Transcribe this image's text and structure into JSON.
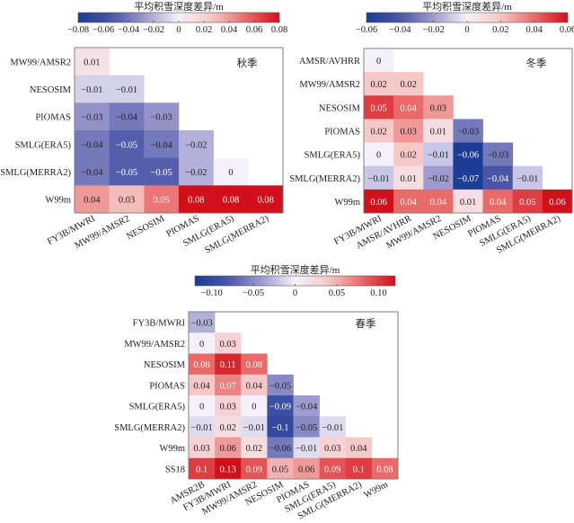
{
  "colormap": {
    "name": "blue-white-red",
    "stops": [
      "#1c3c96",
      "#4a55a8",
      "#9d9ccf",
      "#f5f1fa",
      "#f6c8c8",
      "#ea6a6a",
      "#d1101b"
    ]
  },
  "chart_data": [
    {
      "type": "heatmap",
      "title": "秋季",
      "colorbar_label": "平均积雪深度差异/m",
      "colorbar_range": [
        -0.08,
        0.08
      ],
      "colorbar_ticks": [
        "−0.08",
        "−0.06",
        "−0.04",
        "−0.02",
        "0",
        "0.02",
        "0.04",
        "0.06",
        "0.08"
      ],
      "colorbar_tick_values": [
        -0.08,
        -0.06,
        -0.04,
        -0.02,
        0,
        0.02,
        0.04,
        0.06,
        0.08
      ],
      "x_labels": [
        "FY3B/MWRI",
        "MW99/AMSR2",
        "NESOSIM",
        "PIOMAS",
        "SMLG(ERA5)",
        "SMLG(MERRA2)"
      ],
      "y_labels": [
        "MW99/AMSR2",
        "NESOSIM",
        "PIOMAS",
        "SMLG(ERA5)",
        "SMLG(MERRA2)",
        "W99m"
      ],
      "matrix": [
        [
          0.01,
          null,
          null,
          null,
          null,
          null
        ],
        [
          -0.01,
          -0.01,
          null,
          null,
          null,
          null
        ],
        [
          -0.03,
          -0.04,
          -0.03,
          null,
          null,
          null
        ],
        [
          -0.04,
          -0.05,
          -0.04,
          -0.02,
          null,
          null
        ],
        [
          -0.04,
          -0.05,
          -0.05,
          -0.02,
          0,
          null
        ],
        [
          0.04,
          0.03,
          0.05,
          0.08,
          0.08,
          0.08
        ]
      ]
    },
    {
      "type": "heatmap",
      "title": "冬季",
      "colorbar_label": "平均积雪深度差异/m",
      "colorbar_range": [
        -0.06,
        0.06
      ],
      "colorbar_ticks": [
        "−0.06",
        "−0.04",
        "−0.02",
        "0",
        "0.02",
        "0.04",
        "0.06"
      ],
      "colorbar_tick_values": [
        -0.06,
        -0.04,
        -0.02,
        0,
        0.02,
        0.04,
        0.06
      ],
      "x_labels": [
        "FY3B/MWRI",
        "AMSR/AVHRR",
        "MW99/AMSR2",
        "NESOSIM",
        "PIOMAS",
        "SMLG(ERA5)",
        "SMLG(MERRA2)"
      ],
      "y_labels": [
        "AMSR/AVHRR",
        "MW99/AMSR2",
        "NESOSIM",
        "PIOMAS",
        "SMLG(ERA5)",
        "SMLG(MERRA2)",
        "W99m"
      ],
      "matrix": [
        [
          0,
          null,
          null,
          null,
          null,
          null,
          null
        ],
        [
          0.02,
          0.02,
          null,
          null,
          null,
          null,
          null
        ],
        [
          0.05,
          0.04,
          0.03,
          null,
          null,
          null,
          null
        ],
        [
          0.02,
          0.03,
          0.01,
          -0.03,
          null,
          null,
          null
        ],
        [
          0,
          0.02,
          -0.01,
          -0.06,
          -0.03,
          null,
          null
        ],
        [
          -0.01,
          0.01,
          -0.02,
          -0.07,
          -0.04,
          -0.01,
          null
        ],
        [
          0.06,
          0.04,
          0.04,
          0.01,
          0.04,
          0.05,
          0.06
        ]
      ]
    },
    {
      "type": "heatmap",
      "title": "春季",
      "colorbar_label": "平均积雪深度差异/m",
      "colorbar_range": [
        -0.12,
        0.12
      ],
      "colorbar_ticks": [
        "−0.10",
        "−0.05",
        "0",
        "0.05",
        "0.10"
      ],
      "colorbar_tick_values": [
        -0.1,
        -0.05,
        0,
        0.05,
        0.1
      ],
      "x_labels": [
        "AMSR2B",
        "FY3B/MWRI",
        "MW99/AMSR2",
        "NESOSIM",
        "PIOMAS",
        "SMLG(ERA5)",
        "SMLG(MERRA2)",
        "W99m"
      ],
      "y_labels": [
        "FY3B/MWRI",
        "MW99/AMSR2",
        "NESOSIM",
        "PIOMAS",
        "SMLG(ERA5)",
        "SMLG(MERRA2)",
        "W99m",
        "SS18"
      ],
      "matrix": [
        [
          -0.03,
          null,
          null,
          null,
          null,
          null,
          null,
          null
        ],
        [
          0,
          0.03,
          null,
          null,
          null,
          null,
          null,
          null
        ],
        [
          0.08,
          0.11,
          0.08,
          null,
          null,
          null,
          null,
          null
        ],
        [
          0.04,
          0.07,
          0.04,
          -0.05,
          null,
          null,
          null,
          null
        ],
        [
          0,
          0.03,
          0,
          -0.09,
          -0.04,
          null,
          null,
          null
        ],
        [
          -0.01,
          0.02,
          -0.01,
          -0.1,
          -0.05,
          -0.01,
          null,
          null
        ],
        [
          0.03,
          0.06,
          0.02,
          -0.06,
          -0.01,
          0.03,
          0.04,
          null
        ],
        [
          0.1,
          0.13,
          0.09,
          0.05,
          0.06,
          0.09,
          0.1,
          0.08
        ]
      ]
    }
  ]
}
